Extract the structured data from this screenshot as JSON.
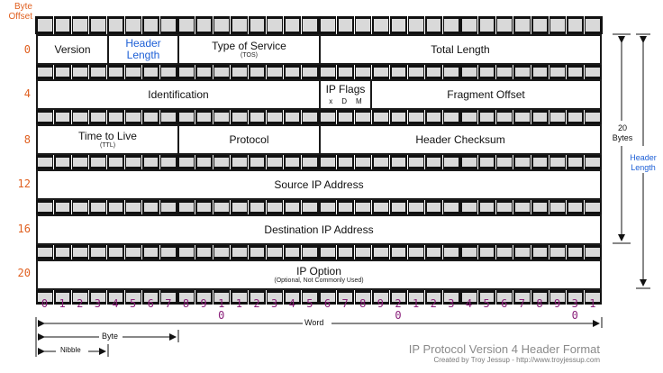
{
  "header": {
    "byte_offset_label": "Byte\nOffset",
    "byte_labels": [
      "0",
      "1",
      "2",
      "3"
    ]
  },
  "row_offsets": [
    "0",
    "4",
    "8",
    "12",
    "16",
    "20"
  ],
  "fields": {
    "version": "Version",
    "header_length": "Header\nLength",
    "type_of_service": "Type of Service",
    "type_of_service_sub": "(TOS)",
    "total_length": "Total Length",
    "identification": "Identification",
    "ip_flags": "IP Flags",
    "ip_flags_sub": [
      "x",
      "D",
      "M"
    ],
    "fragment_offset": "Fragment Offset",
    "time_to_live": "Time to Live",
    "time_to_live_sub": "(TTL)",
    "protocol": "Protocol",
    "header_checksum": "Header Checksum",
    "source_ip": "Source IP Address",
    "destination_ip": "Destination IP Address",
    "ip_option": "IP Option",
    "ip_option_sub": "(Optional, Not Commonly Used)"
  },
  "bit_numbers_top": [
    "0",
    "1",
    "2",
    "3",
    "4",
    "5",
    "6",
    "7",
    "8",
    "9",
    "1",
    "1",
    "2",
    "3",
    "4",
    "5",
    "6",
    "7",
    "8",
    "9",
    "2",
    "1",
    "2",
    "3",
    "4",
    "5",
    "6",
    "7",
    "8",
    "9",
    "3",
    "1"
  ],
  "bit_numbers_bottom": {
    "10": "0",
    "20": "0",
    "30": "0"
  },
  "annotations": {
    "twenty_bytes": "20\nBytes",
    "header_length": "Header\nLength",
    "word": "Word",
    "byte": "Byte",
    "nibble": "Nibble"
  },
  "footer": {
    "title": "IP Protocol Version 4 Header Format",
    "credit": "Created by Troy Jessup - http://www.troyjessup.com"
  },
  "colors": {
    "offset_orange": "#e06020",
    "bit_purple": "#8a1f7a",
    "accent_blue": "#1d5fd6"
  }
}
